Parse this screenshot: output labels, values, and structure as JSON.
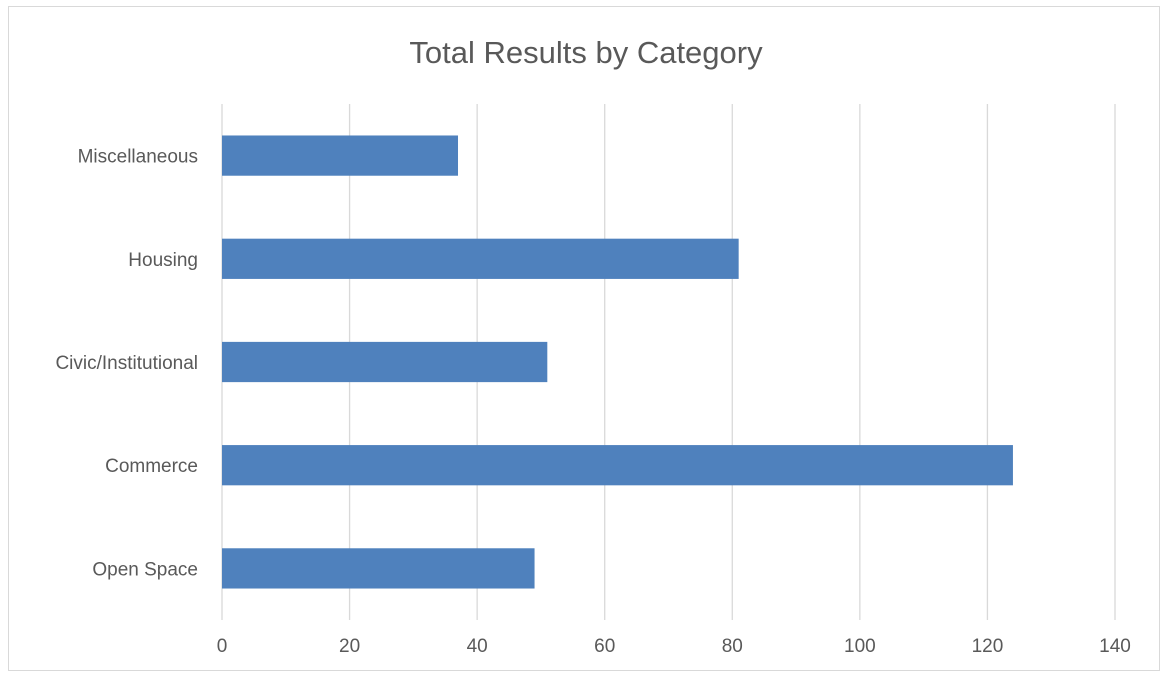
{
  "chart_data": {
    "type": "bar",
    "orientation": "horizontal",
    "title": "Total Results by Category",
    "xlabel": "",
    "ylabel": "",
    "categories": [
      "Open Space",
      "Commerce",
      "Civic/Institutional",
      "Housing",
      "Miscellaneous"
    ],
    "values": [
      49,
      124,
      51,
      81,
      37
    ],
    "xlim": [
      0,
      140
    ],
    "xticks": [
      0,
      20,
      40,
      60,
      80,
      100,
      120,
      140
    ],
    "grid": true,
    "legend": "none",
    "colors": {
      "bar": "#4f81bd",
      "grid": "#d9d9d9",
      "text": "#595959",
      "border": "#d9d9d9"
    }
  }
}
